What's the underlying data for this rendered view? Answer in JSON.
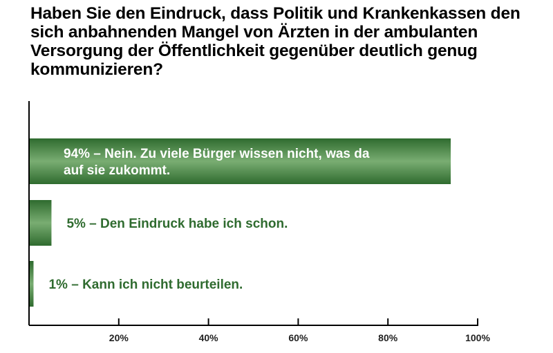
{
  "chart_data": {
    "type": "bar",
    "orientation": "horizontal",
    "title": "Haben Sie den Eindruck, dass Politik und Krankenkassen den sich anbahnenden Mangel von Ärzten in der ambulanten Versorgung der Öffentlichkeit gegenüber deutlich genug kommunizieren?",
    "categories": [
      "94% – Nein. Zu viele Bürger wissen nicht, was da auf sie zukommt.",
      "5% – Den Eindruck habe ich schon.",
      "1% – Kann ich nicht beurteilen."
    ],
    "bar_label_lines": [
      [
        "94% – Nein. Zu viele Bürger wissen nicht, was da",
        "auf sie zukommt."
      ],
      [
        "5% – Den Eindruck habe ich schon."
      ],
      [
        "1% – Kann ich nicht beurteilen."
      ]
    ],
    "values": [
      94,
      5,
      1
    ],
    "xlim": [
      0,
      100
    ],
    "xticks": [
      20,
      40,
      60,
      80,
      100
    ],
    "xtick_labels": [
      "20%",
      "40%",
      "60%",
      "80%",
      "100%"
    ],
    "xlabel": "",
    "ylabel": "",
    "grid": false,
    "legend": "none",
    "colors": {
      "bar_dark": "#2f6b2f",
      "bar_light": "#79ad72",
      "label_inside": "#ffffff",
      "label_outside": "#2f6b2f",
      "axis": "#000000"
    }
  }
}
